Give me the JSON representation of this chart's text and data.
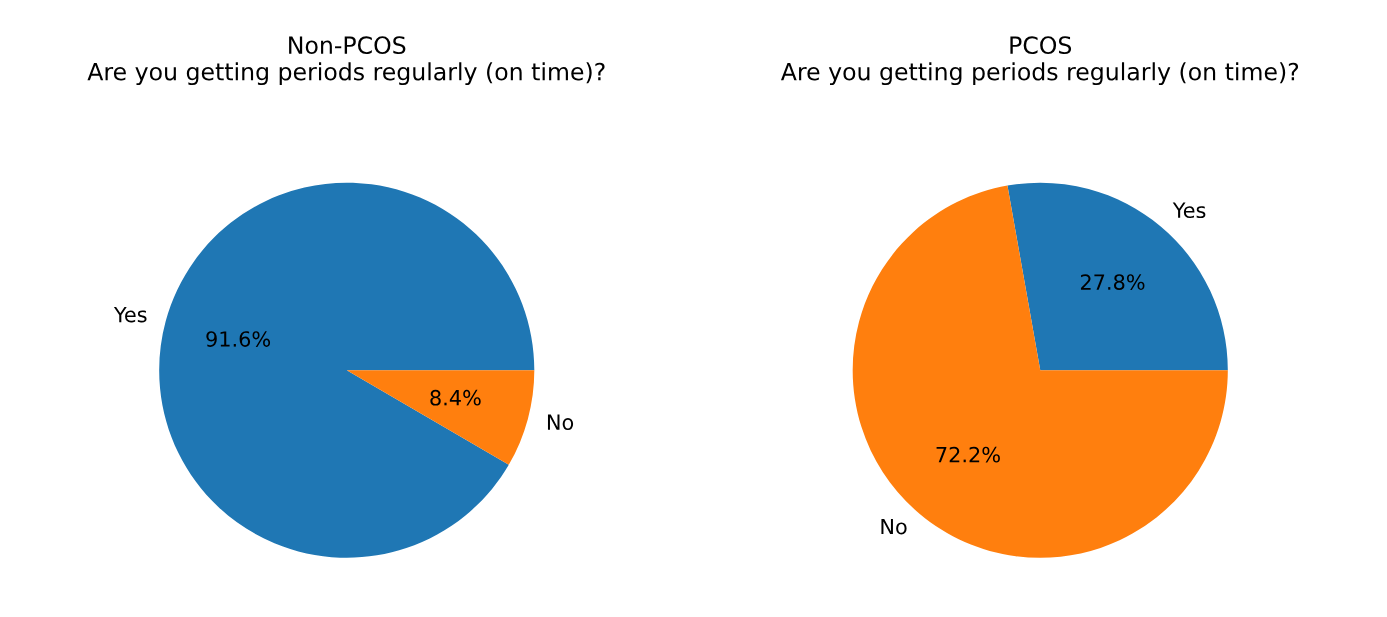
{
  "chart_data": [
    {
      "type": "pie",
      "title": "Non-PCOS\nAre you getting periods regularly (on time)?",
      "categories": [
        "Yes",
        "No"
      ],
      "values": [
        91.6,
        8.4
      ],
      "colors": [
        "#1f77b4",
        "#ff7f0e"
      ],
      "value_labels": [
        "91.6%",
        "8.4%"
      ]
    },
    {
      "type": "pie",
      "title": "PCOS\nAre you getting periods regularly (on time)?",
      "categories": [
        "Yes",
        "No"
      ],
      "values": [
        27.8,
        72.2
      ],
      "colors": [
        "#1f77b4",
        "#ff7f0e"
      ],
      "value_labels": [
        "27.8%",
        "72.2%"
      ]
    }
  ]
}
